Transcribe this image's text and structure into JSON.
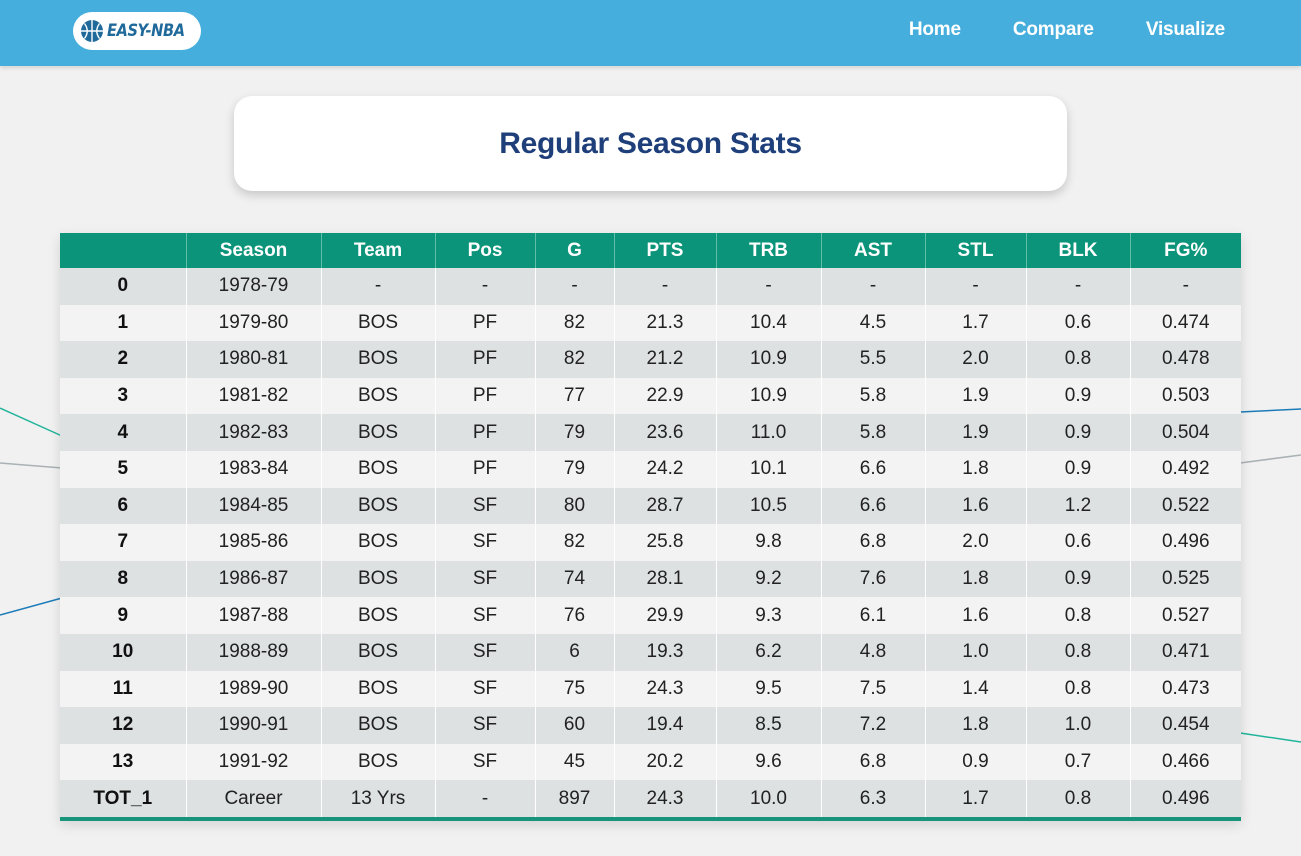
{
  "navbar": {
    "logo_text": "EASY-NBA",
    "links": [
      "Home",
      "Compare",
      "Visualize"
    ]
  },
  "title": "Regular Season Stats",
  "table": {
    "headers": [
      "",
      "Season",
      "Team",
      "Pos",
      "G",
      "PTS",
      "TRB",
      "AST",
      "STL",
      "BLK",
      "FG%"
    ],
    "rows": [
      [
        "0",
        "1978-79",
        "-",
        "-",
        "-",
        "-",
        "-",
        "-",
        "-",
        "-",
        "-"
      ],
      [
        "1",
        "1979-80",
        "BOS",
        "PF",
        "82",
        "21.3",
        "10.4",
        "4.5",
        "1.7",
        "0.6",
        "0.474"
      ],
      [
        "2",
        "1980-81",
        "BOS",
        "PF",
        "82",
        "21.2",
        "10.9",
        "5.5",
        "2.0",
        "0.8",
        "0.478"
      ],
      [
        "3",
        "1981-82",
        "BOS",
        "PF",
        "77",
        "22.9",
        "10.9",
        "5.8",
        "1.9",
        "0.9",
        "0.503"
      ],
      [
        "4",
        "1982-83",
        "BOS",
        "PF",
        "79",
        "23.6",
        "11.0",
        "5.8",
        "1.9",
        "0.9",
        "0.504"
      ],
      [
        "5",
        "1983-84",
        "BOS",
        "PF",
        "79",
        "24.2",
        "10.1",
        "6.6",
        "1.8",
        "0.9",
        "0.492"
      ],
      [
        "6",
        "1984-85",
        "BOS",
        "SF",
        "80",
        "28.7",
        "10.5",
        "6.6",
        "1.6",
        "1.2",
        "0.522"
      ],
      [
        "7",
        "1985-86",
        "BOS",
        "SF",
        "82",
        "25.8",
        "9.8",
        "6.8",
        "2.0",
        "0.6",
        "0.496"
      ],
      [
        "8",
        "1986-87",
        "BOS",
        "SF",
        "74",
        "28.1",
        "9.2",
        "7.6",
        "1.8",
        "0.9",
        "0.525"
      ],
      [
        "9",
        "1987-88",
        "BOS",
        "SF",
        "76",
        "29.9",
        "9.3",
        "6.1",
        "1.6",
        "0.8",
        "0.527"
      ],
      [
        "10",
        "1988-89",
        "BOS",
        "SF",
        "6",
        "19.3",
        "6.2",
        "4.8",
        "1.0",
        "0.8",
        "0.471"
      ],
      [
        "11",
        "1989-90",
        "BOS",
        "SF",
        "75",
        "24.3",
        "9.5",
        "7.5",
        "1.4",
        "0.8",
        "0.473"
      ],
      [
        "12",
        "1990-91",
        "BOS",
        "SF",
        "60",
        "19.4",
        "8.5",
        "7.2",
        "1.8",
        "1.0",
        "0.454"
      ],
      [
        "13",
        "1991-92",
        "BOS",
        "SF",
        "45",
        "20.2",
        "9.6",
        "6.8",
        "0.9",
        "0.7",
        "0.466"
      ],
      [
        "TOT_1",
        "Career",
        "13 Yrs",
        "-",
        "897",
        "24.3",
        "10.0",
        "6.3",
        "1.7",
        "0.8",
        "0.496"
      ]
    ]
  },
  "colors": {
    "navbar": "#46aedc",
    "table_header": "#0b9479",
    "title": "#1e3f7a",
    "background": "#f1f1f1"
  },
  "icons": {
    "logo": "basketball-icon"
  }
}
